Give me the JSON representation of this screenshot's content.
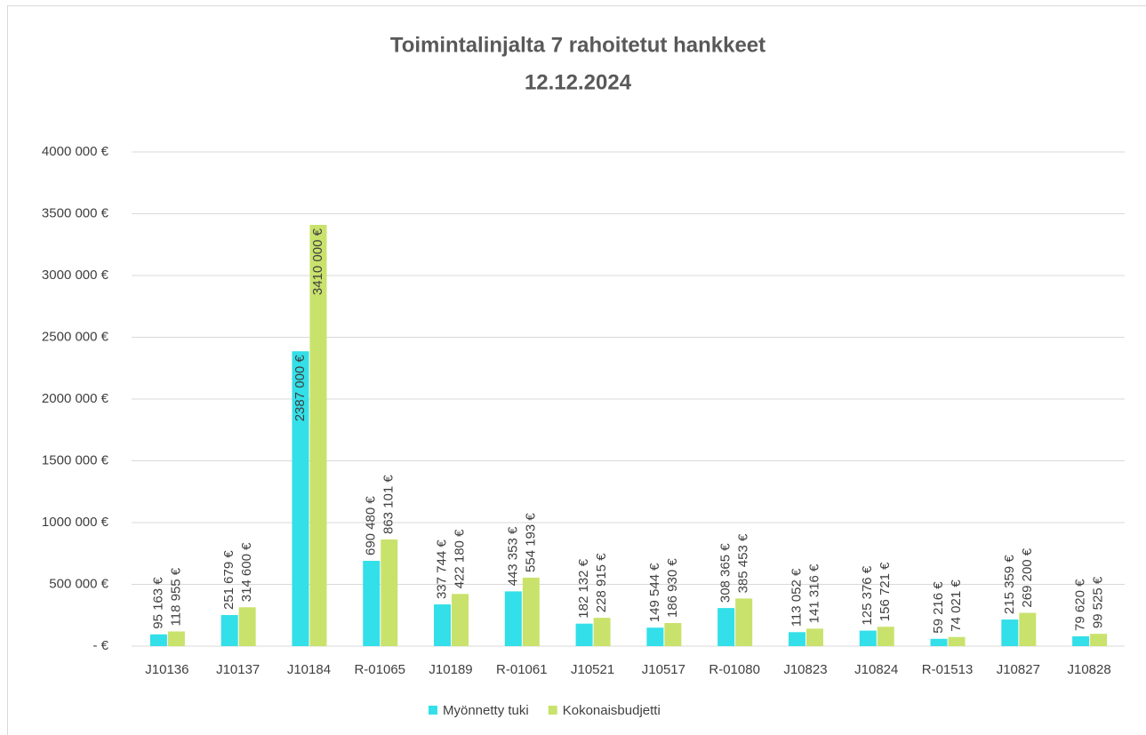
{
  "chart_data": {
    "type": "bar",
    "title": "Toimintalinjalta 7 rahoitetut hankkeet",
    "subtitle": "12.12.2024",
    "categories": [
      "J10136",
      "J10137",
      "J10184",
      "R-01065",
      "J10189",
      "R-01061",
      "J10521",
      "J10517",
      "R-01080",
      "J10823",
      "J10824",
      "R-01513",
      "J10827",
      "J10828"
    ],
    "series": [
      {
        "name": "Myönnetty tuki",
        "color": "#33dfe8",
        "values": [
          95163,
          251679,
          2387000,
          690480,
          337744,
          443353,
          182132,
          149544,
          308365,
          113052,
          125376,
          59216,
          215359,
          79620
        ],
        "value_labels": [
          "95 163 €",
          "251 679 €",
          "2387 000 €",
          "690 480 €",
          "337 744 €",
          "443 353 €",
          "182 132 €",
          "149 544 €",
          "308 365 €",
          "113 052 €",
          "125 376 €",
          "59 216 €",
          "215 359 €",
          "79 620 €"
        ]
      },
      {
        "name": "Kokonaisbudjetti",
        "color": "#c9e26c",
        "values": [
          118955,
          314600,
          3410000,
          863101,
          422180,
          554193,
          228915,
          186930,
          385453,
          141316,
          156721,
          74021,
          269200,
          99525
        ],
        "value_labels": [
          "118 955 €",
          "314 600 €",
          "3410 000 €",
          "863 101 €",
          "422 180 €",
          "554 193 €",
          "228 915 €",
          "186 930 €",
          "385 453 €",
          "141 316 €",
          "156 721 €",
          "74 021 €",
          "269 200 €",
          "99 525 €"
        ]
      }
    ],
    "ylim": [
      0,
      4000000
    ],
    "yticks": [
      {
        "value": 0,
        "label": "-  €"
      },
      {
        "value": 500000,
        "label": "500 000 €"
      },
      {
        "value": 1000000,
        "label": "1000 000 €"
      },
      {
        "value": 1500000,
        "label": "1500 000 €"
      },
      {
        "value": 2000000,
        "label": "2000 000 €"
      },
      {
        "value": 2500000,
        "label": "2500 000 €"
      },
      {
        "value": 3000000,
        "label": "3000 000 €"
      },
      {
        "value": 3500000,
        "label": "3500 000 €"
      },
      {
        "value": 4000000,
        "label": "4000 000 €"
      }
    ],
    "grid": true,
    "legend": "bottom"
  }
}
